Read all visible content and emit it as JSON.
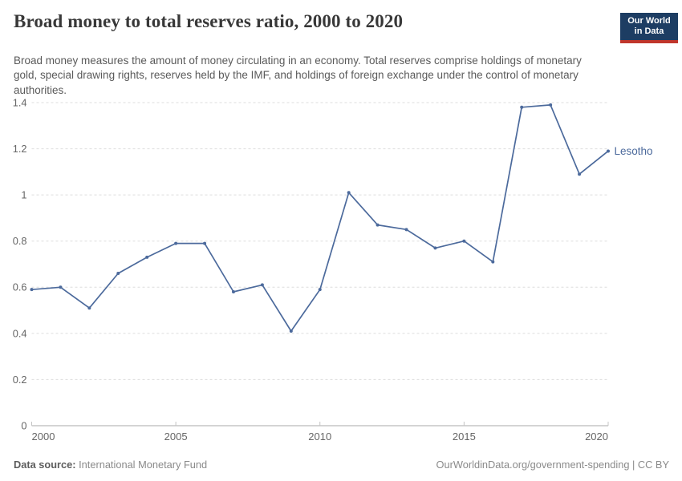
{
  "header": {
    "title": "Broad money to total reserves ratio, 2000 to 2020",
    "subtitle": "Broad money measures the amount of money circulating in an economy. Total reserves comprise holdings of monetary gold, special drawing rights, reserves held by the IMF, and holdings of foreign exchange under the control of monetary authorities.",
    "logo": {
      "line1": "Our World",
      "line2": "in Data"
    }
  },
  "chart_data": {
    "type": "line",
    "title": "Broad money to total reserves ratio, 2000 to 2020",
    "x": [
      2000,
      2001,
      2002,
      2003,
      2004,
      2005,
      2006,
      2007,
      2008,
      2009,
      2010,
      2011,
      2012,
      2013,
      2014,
      2015,
      2016,
      2017,
      2018,
      2019,
      2020
    ],
    "series": [
      {
        "name": "Lesotho",
        "color": "#4C6A9C",
        "values": [
          0.59,
          0.6,
          0.51,
          0.66,
          0.73,
          0.79,
          0.79,
          0.58,
          0.61,
          0.41,
          0.59,
          1.01,
          0.87,
          0.85,
          0.77,
          0.8,
          0.71,
          1.38,
          1.39,
          1.09,
          1.19
        ]
      }
    ],
    "xlabel": "",
    "ylabel": "",
    "xlim": [
      2000,
      2020
    ],
    "ylim": [
      0,
      1.4
    ],
    "x_ticks": [
      2000,
      2005,
      2010,
      2015,
      2020
    ],
    "y_ticks": [
      0,
      0.2,
      0.4,
      0.6,
      0.8,
      1,
      1.2,
      1.4
    ],
    "grid": "horizontal-dashed",
    "legend_position": "line-end-label"
  },
  "footer": {
    "source_label": "Data source:",
    "source_value": "International Monetary Fund",
    "link": "OurWorldinData.org/government-spending | CC BY"
  },
  "colors": {
    "line": "#4C6A9C",
    "grid": "#dddddd",
    "axis": "#a8a8a8",
    "tick": "#c4c4c4",
    "tick_label": "#666666",
    "title": "#383838",
    "subtitle": "#5a5a5a",
    "logo_bg": "#1d3d63",
    "logo_accent": "#c0362c"
  }
}
